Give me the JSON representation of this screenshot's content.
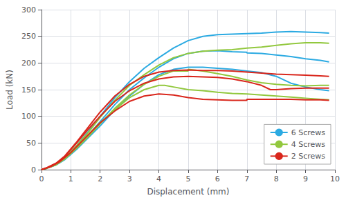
{
  "chart_data": {
    "type": "line",
    "title": "",
    "xlabel": "Displacement (mm)",
    "ylabel": "Load (kN)",
    "xlim": [
      0,
      10
    ],
    "ylim": [
      0,
      300
    ],
    "xticks": [
      0,
      1,
      2,
      3,
      4,
      5,
      6,
      7,
      8,
      9,
      10
    ],
    "yticks": [
      0,
      50,
      100,
      150,
      200,
      250,
      300
    ],
    "grid": true,
    "legend": "lower right",
    "series": [
      {
        "name": "6 Screws",
        "color": "#2BAAE2",
        "x": [
          0,
          0.2,
          0.5,
          0.8,
          1.2,
          1.6,
          2.0,
          2.5,
          3.0,
          3.5,
          4.0,
          4.5,
          5.0,
          5.5,
          6.0,
          6.5,
          7.0,
          7.5,
          8.0,
          8.5,
          9.0,
          9.5,
          9.8
        ],
        "values": [
          0,
          3,
          10,
          22,
          45,
          72,
          100,
          135,
          165,
          190,
          210,
          228,
          242,
          250,
          253,
          254,
          255,
          256,
          258,
          259,
          258,
          257,
          256
        ]
      },
      {
        "name": "6 Screws",
        "color": "#2BAAE2",
        "x": [
          0,
          0.2,
          0.5,
          0.8,
          1.2,
          1.6,
          2.0,
          2.5,
          3.0,
          3.5,
          4.0,
          4.5,
          5.0,
          5.5,
          6.0,
          6.5,
          7.0,
          7.0,
          7.5,
          8.0,
          8.5,
          9.0,
          9.5,
          9.8
        ],
        "values": [
          0,
          3,
          9,
          20,
          42,
          65,
          90,
          122,
          150,
          172,
          192,
          208,
          218,
          222,
          223,
          221,
          220,
          219,
          218,
          215,
          212,
          208,
          205,
          202
        ]
      },
      {
        "name": "6 Screws",
        "color": "#2BAAE2",
        "x": [
          0,
          0.2,
          0.5,
          0.8,
          1.2,
          1.6,
          2.0,
          2.5,
          3.0,
          3.5,
          4.0,
          4.5,
          5.0,
          5.5,
          6.0,
          6.5,
          7.0,
          7.5,
          8.0,
          8.5,
          9.0,
          9.5,
          9.8
        ],
        "values": [
          0,
          3,
          9,
          19,
          38,
          60,
          82,
          112,
          138,
          160,
          178,
          188,
          192,
          192,
          190,
          188,
          185,
          182,
          175,
          162,
          155,
          150,
          148
        ]
      },
      {
        "name": "4 Screws",
        "color": "#92C83E",
        "x": [
          0,
          0.2,
          0.5,
          0.8,
          1.2,
          1.6,
          2.0,
          2.5,
          3.0,
          3.5,
          4.0,
          4.5,
          5.0,
          5.5,
          6.0,
          6.5,
          7.0,
          7.5,
          8.0,
          8.5,
          9.0,
          9.5,
          9.8
        ],
        "values": [
          0,
          3,
          10,
          22,
          45,
          70,
          98,
          130,
          158,
          178,
          196,
          210,
          218,
          222,
          224,
          225,
          228,
          230,
          233,
          236,
          238,
          238,
          237
        ]
      },
      {
        "name": "4 Screws",
        "color": "#92C83E",
        "x": [
          0,
          0.2,
          0.5,
          0.8,
          1.2,
          1.6,
          2.0,
          2.5,
          3.0,
          3.5,
          4.0,
          4.5,
          5.0,
          5.0,
          5.5,
          6.0,
          6.5,
          7.0,
          7.5,
          8.0,
          8.5,
          9.0,
          9.5,
          9.8
        ],
        "values": [
          0,
          3,
          9,
          20,
          40,
          62,
          86,
          115,
          140,
          160,
          175,
          185,
          185,
          188,
          185,
          180,
          175,
          168,
          163,
          160,
          158,
          157,
          158,
          158
        ]
      },
      {
        "name": "4 Screws",
        "color": "#92C83E",
        "x": [
          0,
          0.3,
          0.6,
          1.0,
          1.5,
          2.0,
          2.5,
          3.0,
          3.5,
          4.0,
          4.2,
          4.5,
          5.0,
          5.5,
          6.0,
          6.5,
          7.0,
          7.5,
          8.0,
          8.5,
          9.0,
          9.5,
          9.8
        ],
        "values": [
          0,
          5,
          14,
          32,
          60,
          88,
          112,
          135,
          150,
          158,
          158,
          155,
          150,
          148,
          145,
          143,
          142,
          140,
          138,
          136,
          134,
          132,
          131
        ]
      },
      {
        "name": "2 Screws",
        "color": "#D9261C",
        "x": [
          0,
          0.2,
          0.5,
          0.8,
          1.2,
          1.6,
          2.0,
          2.5,
          3.0,
          3.5,
          4.0,
          4.5,
          5.0,
          5.5,
          6.0,
          6.5,
          7.0,
          7.5,
          8.0,
          8.5,
          9.0,
          9.5,
          9.8
        ],
        "values": [
          0,
          4,
          12,
          26,
          52,
          80,
          108,
          138,
          160,
          175,
          183,
          186,
          187,
          186,
          186,
          185,
          183,
          181,
          179,
          178,
          177,
          176,
          175
        ]
      },
      {
        "name": "2 Screws",
        "color": "#D9261C",
        "x": [
          0,
          0.2,
          0.5,
          0.8,
          1.2,
          1.6,
          2.0,
          2.5,
          3.0,
          3.5,
          4.0,
          4.5,
          5.0,
          5.5,
          6.0,
          6.5,
          7.0,
          7.5,
          7.8,
          8.0,
          8.5,
          9.0,
          9.5,
          9.8
        ],
        "values": [
          0,
          4,
          12,
          25,
          50,
          76,
          100,
          128,
          148,
          162,
          170,
          174,
          175,
          174,
          173,
          170,
          165,
          158,
          150,
          150,
          152,
          153,
          153,
          153
        ]
      },
      {
        "name": "2 Screws",
        "color": "#D9261C",
        "x": [
          0,
          0.3,
          0.6,
          1.0,
          1.5,
          2.0,
          2.5,
          3.0,
          3.5,
          4.0,
          4.5,
          5.0,
          5.5,
          6.0,
          6.5,
          7.0,
          7.0,
          7.5,
          8.0,
          8.5,
          9.0,
          9.5,
          9.8
        ],
        "values": [
          0,
          5,
          14,
          32,
          60,
          88,
          110,
          128,
          138,
          142,
          140,
          135,
          132,
          131,
          130,
          130,
          132,
          132,
          132,
          132,
          131,
          131,
          130
        ]
      }
    ]
  }
}
